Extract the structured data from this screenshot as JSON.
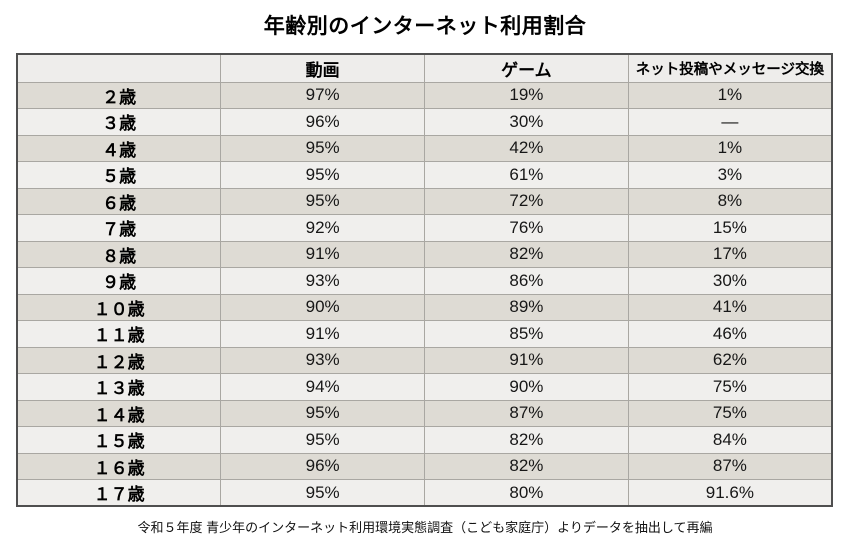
{
  "page": {
    "title": "年齢別のインターネット利用割合",
    "source_note": "令和５年度 青少年のインターネット利用環境実態調査（こども家庭庁）よりデータを抽出して再編"
  },
  "colors": {
    "row_stripe_dark": "#dedbd4",
    "row_stripe_light": "#f0efed",
    "header_bg": "#eeedeb",
    "grid_line": "#a9a7a2",
    "outer_border": "#4f4f4f"
  },
  "table": {
    "columns": [
      "",
      "動画",
      "ゲーム",
      "ネット投稿やメッセージ交換"
    ],
    "rows": [
      {
        "age": "２歳",
        "video": "97%",
        "game": "19%",
        "messaging": "1%"
      },
      {
        "age": "３歳",
        "video": "96%",
        "game": "30%",
        "messaging": "—"
      },
      {
        "age": "４歳",
        "video": "95%",
        "game": "42%",
        "messaging": "1%"
      },
      {
        "age": "５歳",
        "video": "95%",
        "game": "61%",
        "messaging": "3%"
      },
      {
        "age": "６歳",
        "video": "95%",
        "game": "72%",
        "messaging": "8%"
      },
      {
        "age": "７歳",
        "video": "92%",
        "game": "76%",
        "messaging": "15%"
      },
      {
        "age": "８歳",
        "video": "91%",
        "game": "82%",
        "messaging": "17%"
      },
      {
        "age": "９歳",
        "video": "93%",
        "game": "86%",
        "messaging": "30%"
      },
      {
        "age": "１０歳",
        "video": "90%",
        "game": "89%",
        "messaging": "41%"
      },
      {
        "age": "１１歳",
        "video": "91%",
        "game": "85%",
        "messaging": "46%"
      },
      {
        "age": "１２歳",
        "video": "93%",
        "game": "91%",
        "messaging": "62%"
      },
      {
        "age": "１３歳",
        "video": "94%",
        "game": "90%",
        "messaging": "75%"
      },
      {
        "age": "１４歳",
        "video": "95%",
        "game": "87%",
        "messaging": "75%"
      },
      {
        "age": "１５歳",
        "video": "95%",
        "game": "82%",
        "messaging": "84%"
      },
      {
        "age": "１６歳",
        "video": "96%",
        "game": "82%",
        "messaging": "87%"
      },
      {
        "age": "１７歳",
        "video": "95%",
        "game": "80%",
        "messaging": "91.6%"
      }
    ]
  },
  "chart_data": {
    "type": "table",
    "title": "年齢別のインターネット利用割合",
    "categories": [
      "2歳",
      "3歳",
      "4歳",
      "5歳",
      "6歳",
      "7歳",
      "8歳",
      "9歳",
      "10歳",
      "11歳",
      "12歳",
      "13歳",
      "14歳",
      "15歳",
      "16歳",
      "17歳"
    ],
    "series": [
      {
        "name": "動画",
        "values": [
          97,
          96,
          95,
          95,
          95,
          92,
          91,
          93,
          90,
          91,
          93,
          94,
          95,
          95,
          96,
          95
        ]
      },
      {
        "name": "ゲーム",
        "values": [
          19,
          30,
          42,
          61,
          72,
          76,
          82,
          86,
          89,
          85,
          91,
          90,
          87,
          82,
          82,
          80
        ]
      },
      {
        "name": "ネット投稿やメッセージ交換",
        "values": [
          1,
          null,
          1,
          3,
          8,
          15,
          17,
          30,
          41,
          46,
          62,
          75,
          75,
          84,
          87,
          91.6
        ]
      }
    ],
    "unit": "%",
    "missing_marker": "—",
    "source_note": "令和５年度 青少年のインターネット利用環境実態調査（こども家庭庁）よりデータを抽出して再編"
  }
}
